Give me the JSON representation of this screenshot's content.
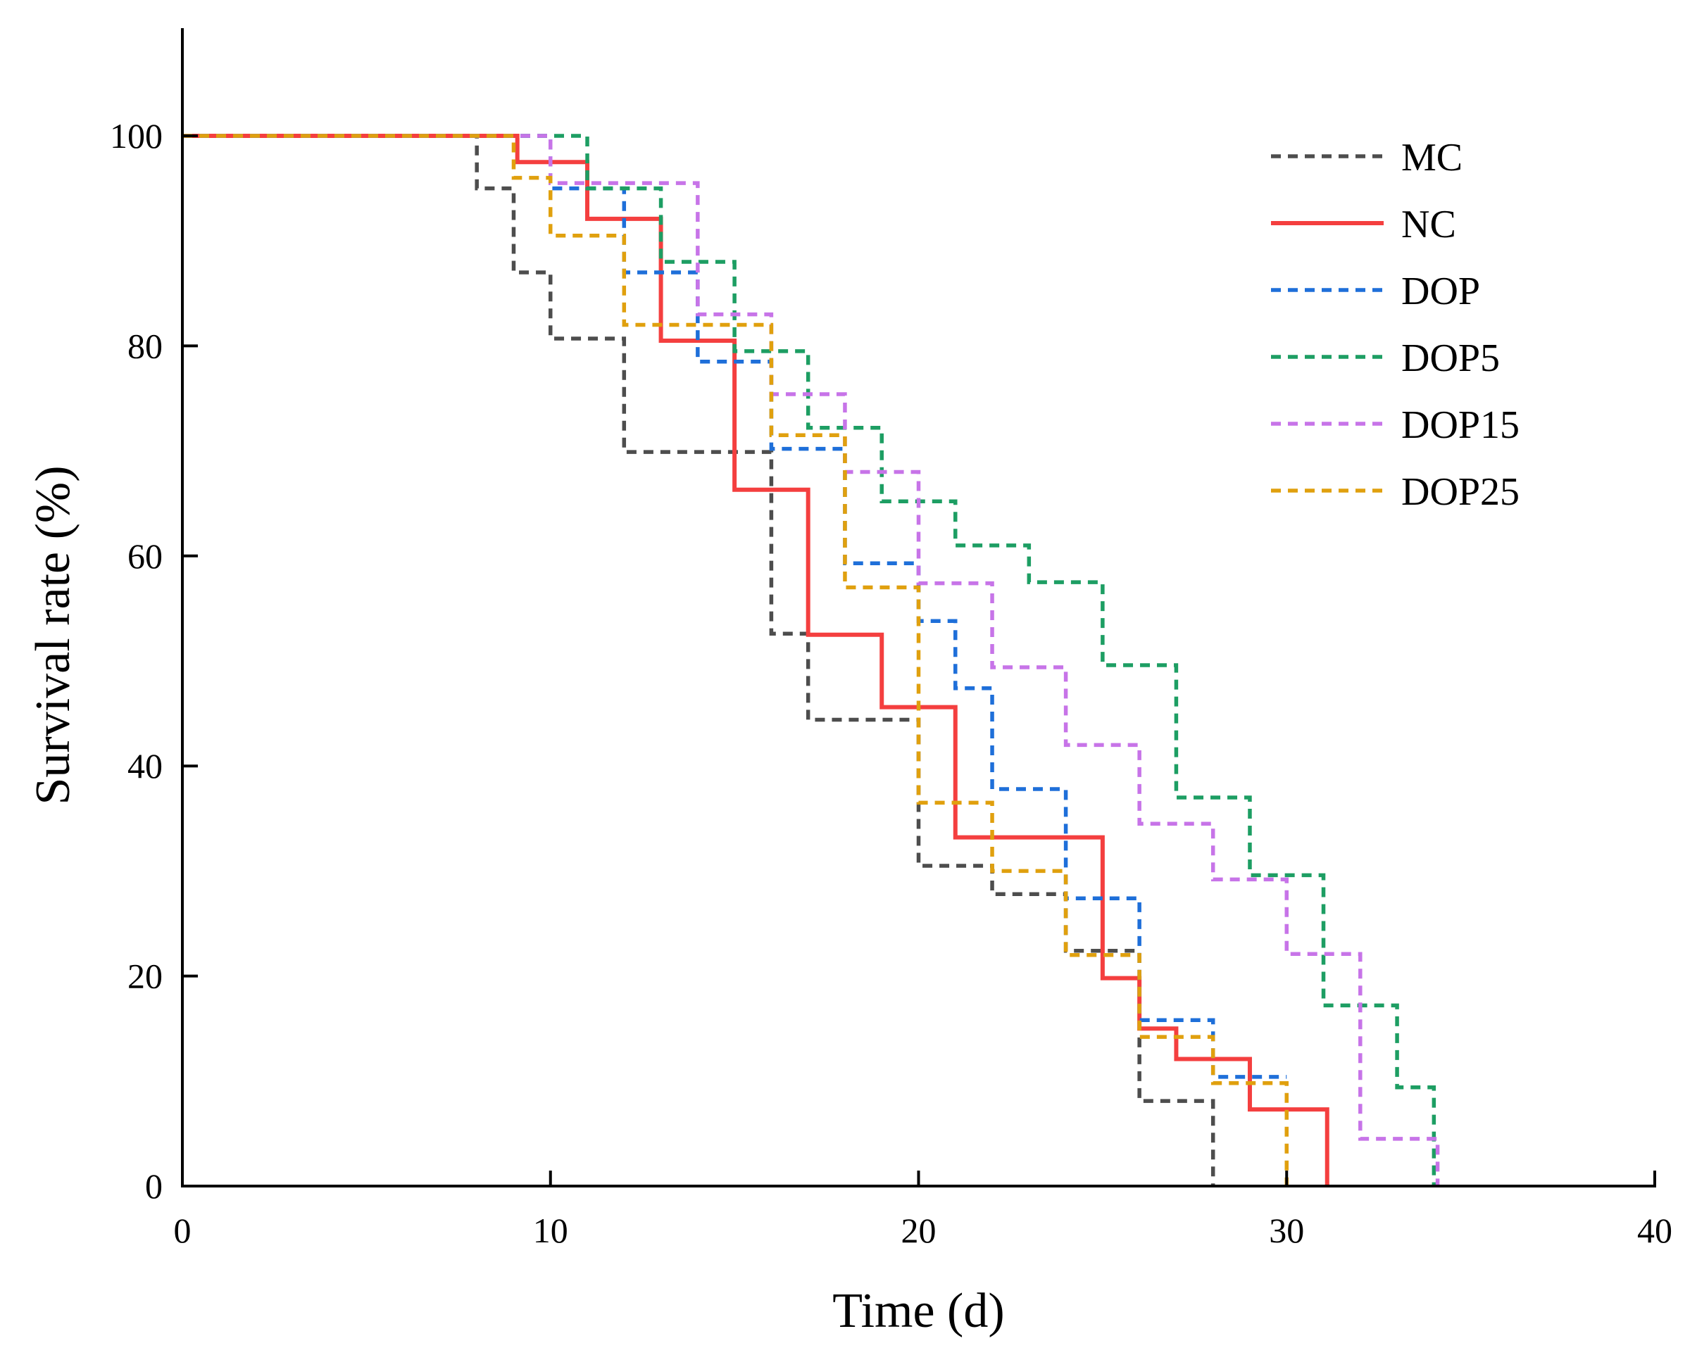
{
  "chart_data": {
    "type": "line",
    "step": true,
    "title": "",
    "xlabel": "Time (d)",
    "ylabel": "Survival rate (%)",
    "xlim": [
      0,
      40
    ],
    "ylim": [
      0,
      110
    ],
    "xticks": [
      0,
      10,
      20,
      30,
      40
    ],
    "yticks": [
      0,
      20,
      40,
      60,
      80,
      100
    ],
    "grid": false,
    "legend_position": "top-right",
    "series": [
      {
        "name": "MC",
        "color": "#4d4d4d",
        "style": "dashed",
        "x": [
          0,
          8,
          9,
          10,
          12,
          16,
          17,
          20,
          22,
          24,
          26,
          28
        ],
        "y": [
          100,
          95,
          87,
          80.7,
          69.9,
          52.6,
          44.4,
          30.5,
          27.8,
          22.4,
          8.1,
          0
        ]
      },
      {
        "name": "NC",
        "color": "#f43f3f",
        "style": "solid",
        "x": [
          0,
          9.1,
          11,
          13,
          15,
          17,
          19,
          21,
          25,
          26,
          27,
          29,
          31.1
        ],
        "y": [
          100,
          97.5,
          92.1,
          80.5,
          66.3,
          52.5,
          45.6,
          33.2,
          19.8,
          15.0,
          12.1,
          7.3,
          0
        ]
      },
      {
        "name": "DOP",
        "color": "#1e6fd9",
        "style": "dashed",
        "x": [
          0,
          10,
          12,
          14,
          16,
          18,
          20,
          21,
          22,
          24,
          26,
          28,
          30
        ],
        "y": [
          100,
          95,
          87,
          78.5,
          70.2,
          59.3,
          53.8,
          47.4,
          37.8,
          27.4,
          15.8,
          10.4,
          10.4
        ]
      },
      {
        "name": "DOP5",
        "color": "#1d9e63",
        "style": "dashed",
        "x": [
          0,
          11,
          13,
          15,
          17,
          19,
          21,
          23,
          25,
          27,
          29,
          31,
          33,
          34
        ],
        "y": [
          100,
          95,
          88,
          79.5,
          72.2,
          65.2,
          61,
          57.5,
          49.6,
          37,
          29.6,
          17.2,
          9.4,
          0
        ]
      },
      {
        "name": "DOP15",
        "color": "#c774e8",
        "style": "dashed",
        "x": [
          0,
          10,
          14,
          16,
          18,
          20,
          22,
          24,
          26,
          28,
          30,
          32,
          34.1
        ],
        "y": [
          100,
          95.5,
          83,
          75.4,
          68,
          57.4,
          49.4,
          42,
          34.5,
          29.2,
          22.1,
          4.5,
          0
        ]
      },
      {
        "name": "DOP25",
        "color": "#e0a00e",
        "style": "dashed",
        "x": [
          0,
          9,
          10,
          12,
          16,
          18,
          20,
          22,
          24,
          26,
          28,
          30
        ],
        "y": [
          100,
          96,
          90.5,
          82,
          71.5,
          57,
          36.5,
          30,
          22,
          14.2,
          9.8,
          0
        ]
      }
    ]
  }
}
